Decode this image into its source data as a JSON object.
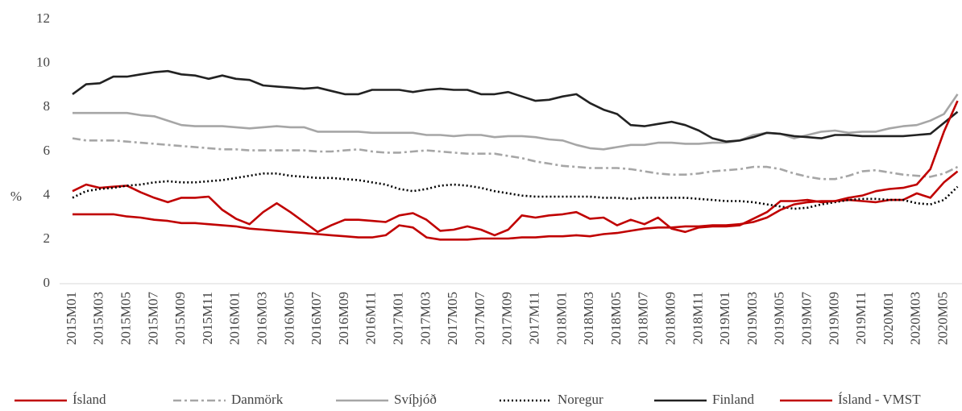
{
  "chart_data": {
    "type": "line",
    "y_label": "%",
    "categories": [
      "2015M01",
      null,
      "2015M03",
      null,
      "2015M05",
      null,
      "2015M07",
      null,
      "2015M09",
      null,
      "2015M11",
      null,
      "2016M01",
      null,
      "2016M03",
      null,
      "2016M05",
      null,
      "2016M07",
      null,
      "2016M09",
      null,
      "2016M11",
      null,
      "2017M01",
      null,
      "2017M03",
      null,
      "2017M05",
      null,
      "2017M07",
      null,
      "2017M09",
      null,
      "2017M11",
      null,
      "2018M01",
      null,
      "2018M03",
      null,
      "2018M05",
      null,
      "2018M07",
      null,
      "2018M09",
      null,
      "2018M11",
      null,
      "2019M01",
      null,
      "2019M03",
      null,
      "2019M05",
      null,
      "2019M07",
      null,
      "2019M09",
      null,
      "2019M11",
      null,
      "2020M01",
      null,
      "2020M03",
      null,
      "2020M05",
      null
    ],
    "ylim": [
      0,
      12
    ],
    "yticks": [
      0,
      2,
      4,
      6,
      8,
      10,
      12
    ],
    "series": [
      {
        "name": "Ísland",
        "color": "#c00000",
        "dash": "solid",
        "values": [
          4.2,
          4.5,
          4.35,
          4.4,
          4.45,
          4.15,
          3.9,
          3.7,
          3.9,
          3.9,
          3.95,
          3.35,
          2.95,
          2.7,
          3.25,
          3.65,
          3.25,
          2.8,
          2.35,
          2.65,
          2.9,
          2.9,
          2.85,
          2.8,
          3.1,
          3.2,
          2.9,
          2.4,
          2.45,
          2.6,
          2.45,
          2.2,
          2.45,
          3.1,
          3.0,
          3.1,
          3.15,
          3.25,
          2.95,
          3.0,
          2.65,
          2.9,
          2.7,
          3.0,
          2.5,
          2.35,
          2.55,
          2.6,
          2.6,
          2.65,
          2.95,
          3.25,
          3.75,
          3.75,
          3.8,
          3.7,
          3.75,
          3.8,
          3.75,
          3.7,
          3.8,
          3.8,
          4.1,
          3.9,
          4.6,
          5.1
        ]
      },
      {
        "name": "Danmörk",
        "color": "#a6a6a6",
        "dash": "dashdot",
        "values": [
          6.6,
          6.5,
          6.5,
          6.5,
          6.45,
          6.4,
          6.35,
          6.3,
          6.25,
          6.2,
          6.15,
          6.1,
          6.1,
          6.05,
          6.05,
          6.05,
          6.05,
          6.05,
          6.0,
          6.0,
          6.05,
          6.1,
          6.0,
          5.95,
          5.95,
          6.0,
          6.05,
          6.0,
          5.95,
          5.9,
          5.9,
          5.9,
          5.8,
          5.7,
          5.55,
          5.45,
          5.35,
          5.3,
          5.25,
          5.25,
          5.25,
          5.2,
          5.1,
          5.0,
          4.95,
          4.95,
          5.0,
          5.1,
          5.15,
          5.2,
          5.3,
          5.3,
          5.2,
          5.0,
          4.85,
          4.75,
          4.75,
          4.9,
          5.1,
          5.15,
          5.05,
          4.95,
          4.9,
          4.85,
          5.0,
          5.3
        ]
      },
      {
        "name": "Svíþjóð",
        "color": "#a6a6a6",
        "dash": "solid",
        "values": [
          7.75,
          7.75,
          7.75,
          7.75,
          7.75,
          7.65,
          7.6,
          7.4,
          7.2,
          7.15,
          7.15,
          7.15,
          7.1,
          7.05,
          7.1,
          7.15,
          7.1,
          7.1,
          6.9,
          6.9,
          6.9,
          6.9,
          6.85,
          6.85,
          6.85,
          6.85,
          6.75,
          6.75,
          6.7,
          6.75,
          6.75,
          6.65,
          6.7,
          6.7,
          6.65,
          6.55,
          6.5,
          6.3,
          6.15,
          6.1,
          6.2,
          6.3,
          6.3,
          6.4,
          6.4,
          6.35,
          6.35,
          6.4,
          6.4,
          6.5,
          6.75,
          6.85,
          6.8,
          6.6,
          6.75,
          6.9,
          6.95,
          6.85,
          6.9,
          6.9,
          7.05,
          7.15,
          7.2,
          7.4,
          7.7,
          8.6
        ]
      },
      {
        "name": "Noregur",
        "color": "#000000",
        "dash": "dotted",
        "values": [
          3.9,
          4.2,
          4.3,
          4.35,
          4.45,
          4.5,
          4.6,
          4.65,
          4.6,
          4.6,
          4.65,
          4.7,
          4.8,
          4.9,
          5.0,
          5.0,
          4.9,
          4.85,
          4.8,
          4.8,
          4.75,
          4.7,
          4.6,
          4.5,
          4.3,
          4.2,
          4.3,
          4.45,
          4.5,
          4.45,
          4.35,
          4.2,
          4.1,
          4.0,
          3.95,
          3.95,
          3.95,
          3.95,
          3.95,
          3.9,
          3.9,
          3.85,
          3.9,
          3.9,
          3.9,
          3.9,
          3.85,
          3.8,
          3.75,
          3.75,
          3.7,
          3.6,
          3.5,
          3.4,
          3.45,
          3.6,
          3.7,
          3.8,
          3.85,
          3.85,
          3.8,
          3.8,
          3.65,
          3.6,
          3.8,
          4.4
        ]
      },
      {
        "name": "Finland",
        "color": "#222222",
        "dash": "solid",
        "values": [
          8.6,
          9.05,
          9.1,
          9.4,
          9.4,
          9.5,
          9.6,
          9.65,
          9.5,
          9.45,
          9.3,
          9.45,
          9.3,
          9.25,
          9.0,
          8.95,
          8.9,
          8.85,
          8.9,
          8.75,
          8.6,
          8.6,
          8.8,
          8.8,
          8.8,
          8.7,
          8.8,
          8.85,
          8.8,
          8.8,
          8.6,
          8.6,
          8.7,
          8.5,
          8.3,
          8.35,
          8.5,
          8.6,
          8.2,
          7.9,
          7.7,
          7.2,
          7.15,
          7.25,
          7.35,
          7.2,
          6.95,
          6.6,
          6.45,
          6.5,
          6.65,
          6.85,
          6.8,
          6.7,
          6.65,
          6.6,
          6.75,
          6.75,
          6.7,
          6.7,
          6.7,
          6.7,
          6.75,
          6.8,
          7.3,
          7.8
        ]
      },
      {
        "name": "Ísland - VMST",
        "color": "#c00000",
        "dash": "solid",
        "values": [
          3.15,
          3.15,
          3.15,
          3.15,
          3.05,
          3.0,
          2.9,
          2.85,
          2.75,
          2.75,
          2.7,
          2.65,
          2.6,
          2.5,
          2.45,
          2.4,
          2.35,
          2.3,
          2.25,
          2.2,
          2.15,
          2.1,
          2.1,
          2.2,
          2.65,
          2.55,
          2.1,
          2.0,
          2.0,
          2.0,
          2.05,
          2.05,
          2.05,
          2.1,
          2.1,
          2.15,
          2.15,
          2.2,
          2.15,
          2.25,
          2.3,
          2.4,
          2.5,
          2.55,
          2.55,
          2.6,
          2.6,
          2.65,
          2.65,
          2.7,
          2.8,
          3.0,
          3.35,
          3.6,
          3.7,
          3.75,
          3.75,
          3.9,
          4.0,
          4.2,
          4.3,
          4.35,
          4.5,
          5.2,
          6.9,
          8.3
        ]
      }
    ]
  }
}
